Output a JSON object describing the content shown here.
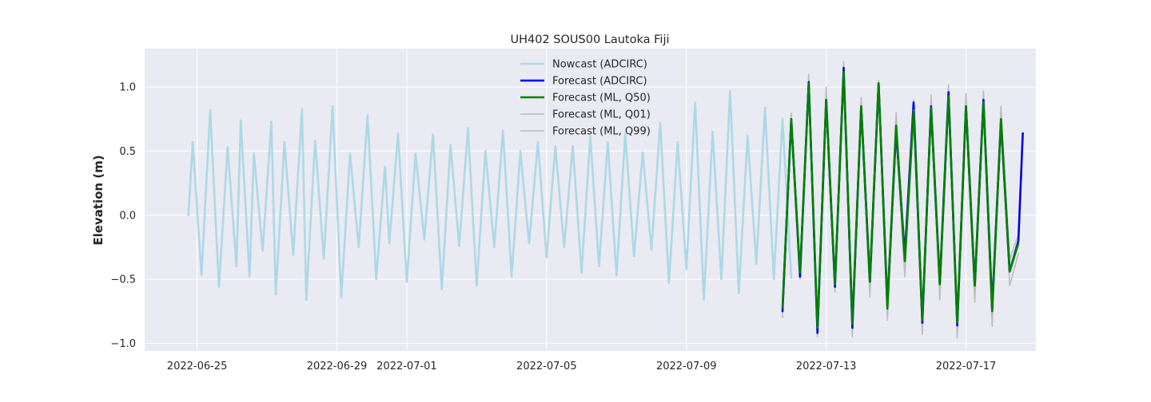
{
  "chart_data": {
    "type": "line",
    "title": "UH402 SOUS00 Lautoka Fiji",
    "xlabel": "",
    "ylabel": "Elevation (m)",
    "xlim": [
      "2022-06-23T12:00",
      "2022-07-19T00:00"
    ],
    "ylim": [
      -1.06,
      1.3
    ],
    "xticks": [
      "2022-06-25",
      "2022-06-29",
      "2022-07-01",
      "2022-07-05",
      "2022-07-09",
      "2022-07-13",
      "2022-07-17"
    ],
    "yticks": [
      -1.0,
      -0.5,
      0.0,
      0.5,
      1.0
    ],
    "ytick_labels": [
      "−1.0",
      "−0.5",
      "0.0",
      "0.5",
      "1.0"
    ],
    "grid": true,
    "legend_position": "top-center",
    "background": "#eaeaf2",
    "series": [
      {
        "name": "Nowcast (ADCIRC)",
        "color": "#add8e6",
        "width": 2.6,
        "x": [
          "2022-06-24T18:00",
          "2022-06-24T21:00",
          "2022-06-25T03:00",
          "2022-06-25T09:00",
          "2022-06-25T15:00",
          "2022-06-25T21:00",
          "2022-06-26T03:00",
          "2022-06-26T06:00",
          "2022-06-26T12:00",
          "2022-06-26T15:00",
          "2022-06-26T21:00",
          "2022-06-27T03:00",
          "2022-06-27T06:00",
          "2022-06-27T12:00",
          "2022-06-27T18:00",
          "2022-06-28T00:00",
          "2022-06-28T03:00",
          "2022-06-28T09:00",
          "2022-06-28T15:00",
          "2022-06-28T21:00",
          "2022-06-29T03:00",
          "2022-06-29T09:00",
          "2022-06-29T15:00",
          "2022-06-29T21:00",
          "2022-06-30T03:00",
          "2022-06-30T09:00",
          "2022-06-30T12:00",
          "2022-06-30T18:00",
          "2022-07-01T00:00",
          "2022-07-01T06:00",
          "2022-07-01T12:00",
          "2022-07-01T18:00",
          "2022-07-02T00:00",
          "2022-07-02T06:00",
          "2022-07-02T12:00",
          "2022-07-02T18:00",
          "2022-07-03T00:00",
          "2022-07-03T06:00",
          "2022-07-03T12:00",
          "2022-07-03T18:00",
          "2022-07-04T00:00",
          "2022-07-04T06:00",
          "2022-07-04T12:00",
          "2022-07-04T18:00",
          "2022-07-05T00:00",
          "2022-07-05T06:00",
          "2022-07-05T12:00",
          "2022-07-05T18:00",
          "2022-07-06T00:00",
          "2022-07-06T06:00",
          "2022-07-06T12:00",
          "2022-07-06T18:00",
          "2022-07-07T00:00",
          "2022-07-07T06:00",
          "2022-07-07T12:00",
          "2022-07-07T18:00",
          "2022-07-08T00:00",
          "2022-07-08T06:00",
          "2022-07-08T12:00",
          "2022-07-08T18:00",
          "2022-07-09T00:00",
          "2022-07-09T06:00",
          "2022-07-09T12:00",
          "2022-07-09T18:00",
          "2022-07-10T00:00",
          "2022-07-10T06:00",
          "2022-07-10T12:00",
          "2022-07-10T18:00",
          "2022-07-11T00:00",
          "2022-07-11T06:00",
          "2022-07-11T12:00",
          "2022-07-11T18:00",
          "2022-07-12T00:00"
        ],
        "y": [
          0.0,
          0.57,
          -0.47,
          0.82,
          -0.56,
          0.53,
          -0.4,
          0.74,
          -0.48,
          0.48,
          -0.28,
          0.73,
          -0.62,
          0.57,
          -0.31,
          0.83,
          -0.66,
          0.58,
          -0.34,
          0.85,
          -0.64,
          0.48,
          -0.25,
          0.78,
          -0.5,
          0.38,
          -0.22,
          0.64,
          -0.52,
          0.48,
          -0.19,
          0.63,
          -0.58,
          0.55,
          -0.24,
          0.68,
          -0.55,
          0.5,
          -0.25,
          0.66,
          -0.48,
          0.5,
          -0.22,
          0.57,
          -0.33,
          0.54,
          -0.25,
          0.54,
          -0.45,
          0.62,
          -0.4,
          0.57,
          -0.47,
          0.63,
          -0.32,
          0.49,
          -0.27,
          0.72,
          -0.53,
          0.57,
          -0.42,
          0.88,
          -0.66,
          0.65,
          -0.5,
          0.97,
          -0.61,
          0.62,
          -0.38,
          0.84,
          -0.5,
          0.75,
          -0.49
        ]
      },
      {
        "name": "Forecast (ADCIRC)",
        "color": "#0000e6",
        "width": 2.6,
        "x": [
          "2022-07-11T18:00",
          "2022-07-12T00:00",
          "2022-07-12T06:00",
          "2022-07-12T12:00",
          "2022-07-12T18:00",
          "2022-07-13T00:00",
          "2022-07-13T06:00",
          "2022-07-13T12:00",
          "2022-07-13T18:00",
          "2022-07-14T00:00",
          "2022-07-14T06:00",
          "2022-07-14T12:00",
          "2022-07-14T18:00",
          "2022-07-15T00:00",
          "2022-07-15T06:00",
          "2022-07-15T12:00",
          "2022-07-15T18:00",
          "2022-07-16T00:00",
          "2022-07-16T06:00",
          "2022-07-16T12:00",
          "2022-07-16T18:00",
          "2022-07-17T00:00",
          "2022-07-17T06:00",
          "2022-07-17T12:00",
          "2022-07-17T18:00",
          "2022-07-18T00:00",
          "2022-07-18T06:00",
          "2022-07-18T12:00",
          "2022-07-18T15:00"
        ],
        "y": [
          -0.75,
          0.75,
          -0.48,
          1.04,
          -0.92,
          0.9,
          -0.56,
          1.15,
          -0.88,
          0.85,
          -0.52,
          1.03,
          -0.7,
          0.66,
          -0.31,
          0.88,
          -0.84,
          0.85,
          -0.53,
          0.96,
          -0.86,
          0.85,
          -0.55,
          0.9,
          -0.72,
          0.73,
          -0.44,
          -0.2,
          0.64
        ]
      },
      {
        "name": "Forecast (ML, Q50)",
        "color": "#008000",
        "width": 2.6,
        "x": [
          "2022-07-11T18:00",
          "2022-07-12T00:00",
          "2022-07-12T06:00",
          "2022-07-12T12:00",
          "2022-07-12T18:00",
          "2022-07-13T00:00",
          "2022-07-13T06:00",
          "2022-07-13T12:00",
          "2022-07-13T18:00",
          "2022-07-14T00:00",
          "2022-07-14T06:00",
          "2022-07-14T12:00",
          "2022-07-14T18:00",
          "2022-07-15T00:00",
          "2022-07-15T06:00",
          "2022-07-15T12:00",
          "2022-07-15T18:00",
          "2022-07-16T00:00",
          "2022-07-16T06:00",
          "2022-07-16T12:00",
          "2022-07-16T18:00",
          "2022-07-17T00:00",
          "2022-07-17T06:00",
          "2022-07-17T12:00",
          "2022-07-17T18:00",
          "2022-07-18T00:00",
          "2022-07-18T06:00",
          "2022-07-18T12:00"
        ],
        "y": [
          -0.72,
          0.75,
          -0.45,
          1.03,
          -0.88,
          0.9,
          -0.54,
          1.12,
          -0.85,
          0.85,
          -0.52,
          1.03,
          -0.73,
          0.7,
          -0.36,
          0.82,
          -0.82,
          0.84,
          -0.54,
          0.93,
          -0.84,
          0.85,
          -0.55,
          0.88,
          -0.75,
          0.75,
          -0.44,
          -0.22
        ]
      },
      {
        "name": "Forecast (ML, Q01)",
        "color": "#bdbdbd",
        "width": 1.6,
        "x": [
          "2022-07-11T18:00",
          "2022-07-12T00:00",
          "2022-07-12T06:00",
          "2022-07-12T12:00",
          "2022-07-12T18:00",
          "2022-07-13T00:00",
          "2022-07-13T06:00",
          "2022-07-13T12:00",
          "2022-07-13T18:00",
          "2022-07-14T00:00",
          "2022-07-14T06:00",
          "2022-07-14T12:00",
          "2022-07-14T18:00",
          "2022-07-15T00:00",
          "2022-07-15T06:00",
          "2022-07-15T12:00",
          "2022-07-15T18:00",
          "2022-07-16T00:00",
          "2022-07-16T06:00",
          "2022-07-16T12:00",
          "2022-07-16T18:00",
          "2022-07-17T00:00",
          "2022-07-17T06:00",
          "2022-07-17T12:00",
          "2022-07-17T18:00",
          "2022-07-18T00:00",
          "2022-07-18T06:00",
          "2022-07-18T12:00"
        ],
        "y": [
          -0.8,
          0.7,
          -0.5,
          0.98,
          -0.95,
          0.85,
          -0.6,
          1.08,
          -0.95,
          0.8,
          -0.64,
          0.98,
          -0.82,
          0.62,
          -0.48,
          0.76,
          -0.93,
          0.8,
          -0.66,
          0.9,
          -0.96,
          0.8,
          -0.68,
          0.84,
          -0.87,
          0.7,
          -0.55,
          -0.3
        ]
      },
      {
        "name": "Forecast (ML, Q99)",
        "color": "#bdbdbd",
        "width": 1.6,
        "x": [
          "2022-07-11T18:00",
          "2022-07-12T00:00",
          "2022-07-12T06:00",
          "2022-07-12T12:00",
          "2022-07-12T18:00",
          "2022-07-13T00:00",
          "2022-07-13T06:00",
          "2022-07-13T12:00",
          "2022-07-13T18:00",
          "2022-07-14T00:00",
          "2022-07-14T06:00",
          "2022-07-14T12:00",
          "2022-07-14T18:00",
          "2022-07-15T00:00",
          "2022-07-15T06:00",
          "2022-07-15T12:00",
          "2022-07-15T18:00",
          "2022-07-16T00:00",
          "2022-07-16T06:00",
          "2022-07-16T12:00",
          "2022-07-16T18:00",
          "2022-07-17T00:00",
          "2022-07-17T06:00",
          "2022-07-17T12:00",
          "2022-07-17T18:00",
          "2022-07-18T00:00",
          "2022-07-18T06:00",
          "2022-07-18T12:00"
        ],
        "y": [
          -0.66,
          0.8,
          -0.4,
          1.1,
          -0.82,
          1.0,
          -0.48,
          1.2,
          -0.78,
          0.92,
          -0.45,
          1.05,
          -0.62,
          0.8,
          -0.3,
          0.9,
          -0.74,
          0.94,
          -0.45,
          1.02,
          -0.75,
          0.95,
          -0.46,
          0.97,
          -0.65,
          0.85,
          -0.35,
          -0.15
        ]
      }
    ]
  }
}
